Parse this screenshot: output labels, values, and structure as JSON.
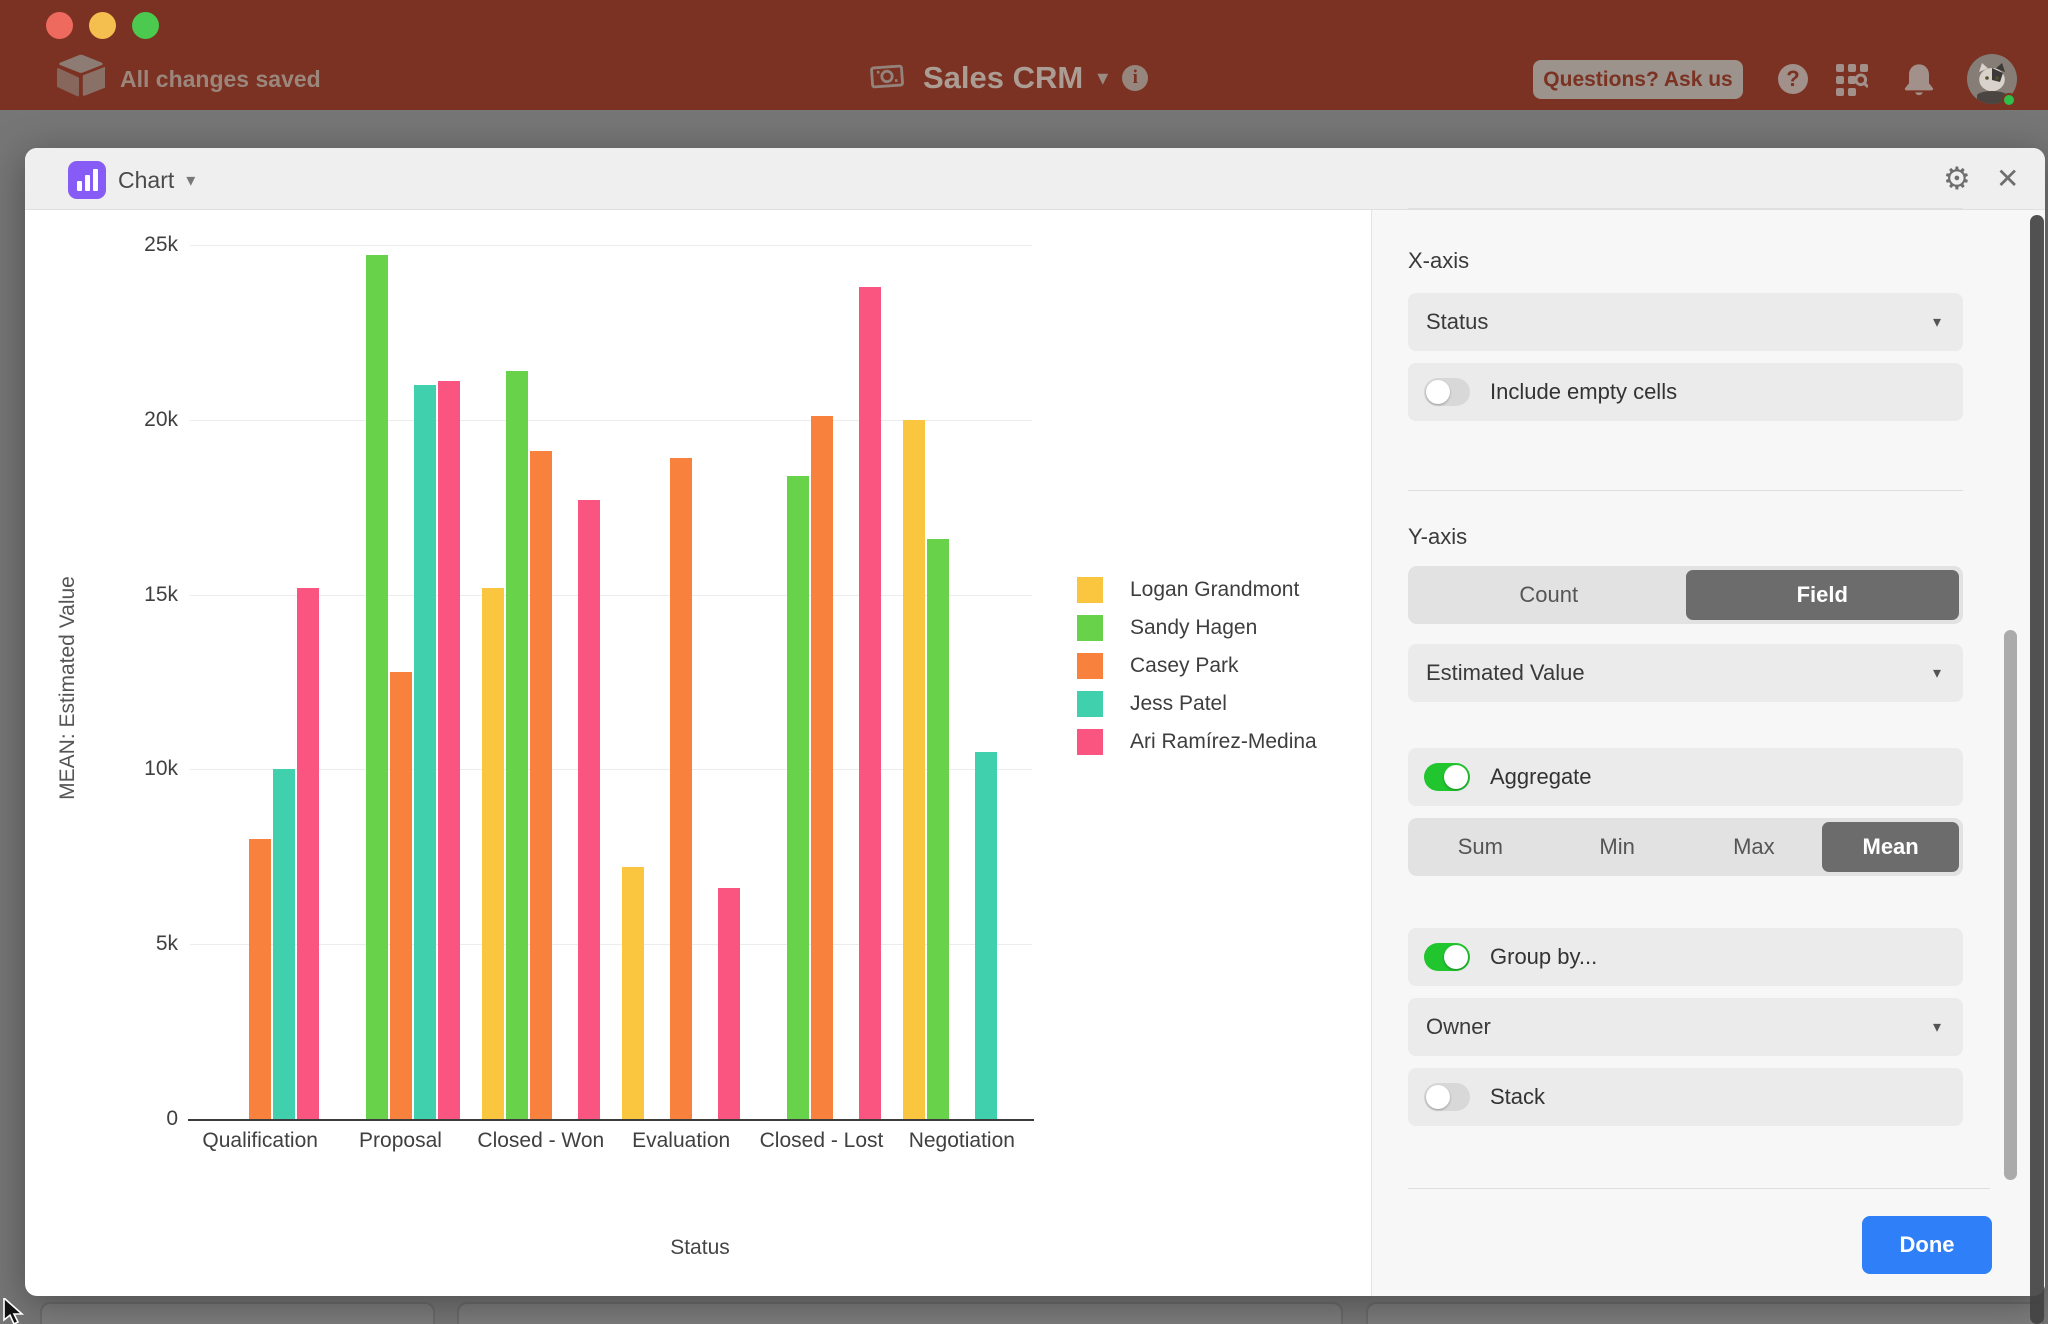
{
  "topbar": {
    "autosave": "All changes saved",
    "app_title": "Sales CRM",
    "questions_label": "Questions? Ask us",
    "help_glyph": "?",
    "info_glyph": "i",
    "topbar_color": "#7b3222"
  },
  "modal": {
    "block_title": "Chart"
  },
  "chart_data": {
    "type": "bar",
    "title": "",
    "xlabel": "Status",
    "ylabel": "MEAN: Estimated Value",
    "categories": [
      "Qualification",
      "Proposal",
      "Closed - Won",
      "Evaluation",
      "Closed - Lost",
      "Negotiation"
    ],
    "series": [
      {
        "name": "Logan Grandmont",
        "color": "#FAC640",
        "values": [
          null,
          null,
          15200,
          7200,
          null,
          20000
        ]
      },
      {
        "name": "Sandy Hagen",
        "color": "#69D24B",
        "values": [
          null,
          24700,
          21400,
          null,
          18400,
          16600
        ]
      },
      {
        "name": "Casey Park",
        "color": "#F8823D",
        "values": [
          8000,
          12800,
          19100,
          18900,
          20100,
          null
        ]
      },
      {
        "name": "Jess Patel",
        "color": "#41D0AE",
        "values": [
          10000,
          21000,
          null,
          null,
          null,
          10500
        ]
      },
      {
        "name": "Ari Ramírez-Medina",
        "color": "#FA5480",
        "values": [
          15200,
          21100,
          17700,
          6600,
          23800,
          null
        ]
      }
    ],
    "ylim": [
      0,
      25000
    ],
    "yticks": [
      {
        "v": 0,
        "label": "0"
      },
      {
        "v": 5000,
        "label": "5k"
      },
      {
        "v": 10000,
        "label": "10k"
      },
      {
        "v": 15000,
        "label": "15k"
      },
      {
        "v": 20000,
        "label": "20k"
      },
      {
        "v": 25000,
        "label": "25k"
      }
    ],
    "grid": true,
    "legend_position": "right"
  },
  "panel": {
    "xaxis": {
      "heading": "X-axis",
      "field": "Status",
      "include_empty": {
        "label": "Include empty cells",
        "on": false
      }
    },
    "yaxis": {
      "heading": "Y-axis",
      "mode_options": [
        "Count",
        "Field"
      ],
      "mode_active": "Field",
      "field": "Estimated Value",
      "aggregate": {
        "label": "Aggregate",
        "on": true
      },
      "aggregate_options": [
        "Sum",
        "Min",
        "Max",
        "Mean"
      ],
      "aggregate_active": "Mean"
    },
    "group": {
      "toggle_label": "Group by...",
      "on": true,
      "field": "Owner",
      "stack": {
        "label": "Stack",
        "on": false
      }
    },
    "done_label": "Done",
    "accent_blue": "#2e7ff8",
    "toggle_green": "#21c52d"
  }
}
